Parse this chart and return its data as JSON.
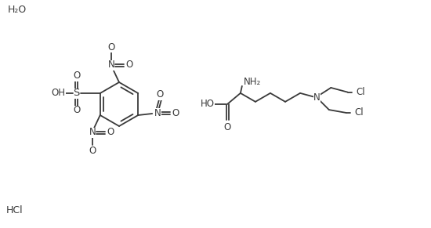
{
  "bg_color": "#ffffff",
  "text_color": "#3a3a3a",
  "bond_color": "#3a3a3a",
  "font_size": 8.5,
  "figsize": [
    5.5,
    2.91
  ],
  "dpi": 100,
  "h2o": "H₂O",
  "hcl": "HCl",
  "nh2": "NH₂"
}
